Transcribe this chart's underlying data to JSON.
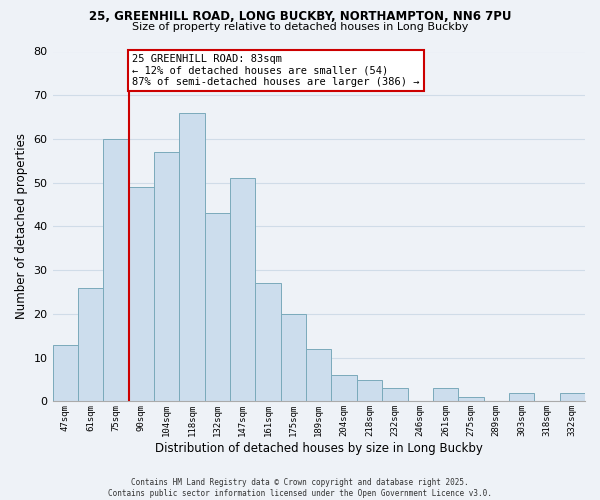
{
  "title1": "25, GREENHILL ROAD, LONG BUCKBY, NORTHAMPTON, NN6 7PU",
  "title2": "Size of property relative to detached houses in Long Buckby",
  "xlabel": "Distribution of detached houses by size in Long Buckby",
  "ylabel": "Number of detached properties",
  "categories": [
    "47sqm",
    "61sqm",
    "75sqm",
    "90sqm",
    "104sqm",
    "118sqm",
    "132sqm",
    "147sqm",
    "161sqm",
    "175sqm",
    "189sqm",
    "204sqm",
    "218sqm",
    "232sqm",
    "246sqm",
    "261sqm",
    "275sqm",
    "289sqm",
    "303sqm",
    "318sqm",
    "332sqm"
  ],
  "values": [
    13,
    26,
    60,
    49,
    57,
    66,
    43,
    51,
    27,
    20,
    12,
    6,
    5,
    3,
    0,
    3,
    1,
    0,
    2,
    0,
    2
  ],
  "bar_color": "#ccdded",
  "bar_edge_color": "#7aaabb",
  "vline_x_index": 2.5,
  "vline_color": "#cc0000",
  "ylim": [
    0,
    80
  ],
  "yticks": [
    0,
    10,
    20,
    30,
    40,
    50,
    60,
    70,
    80
  ],
  "annotation_title": "25 GREENHILL ROAD: 83sqm",
  "annotation_line1": "← 12% of detached houses are smaller (54)",
  "annotation_line2": "87% of semi-detached houses are larger (386) →",
  "annotation_box_color": "#ffffff",
  "annotation_box_edge": "#cc0000",
  "footer1": "Contains HM Land Registry data © Crown copyright and database right 2025.",
  "footer2": "Contains public sector information licensed under the Open Government Licence v3.0.",
  "bg_color": "#eef2f7",
  "grid_color": "#d0dce8"
}
